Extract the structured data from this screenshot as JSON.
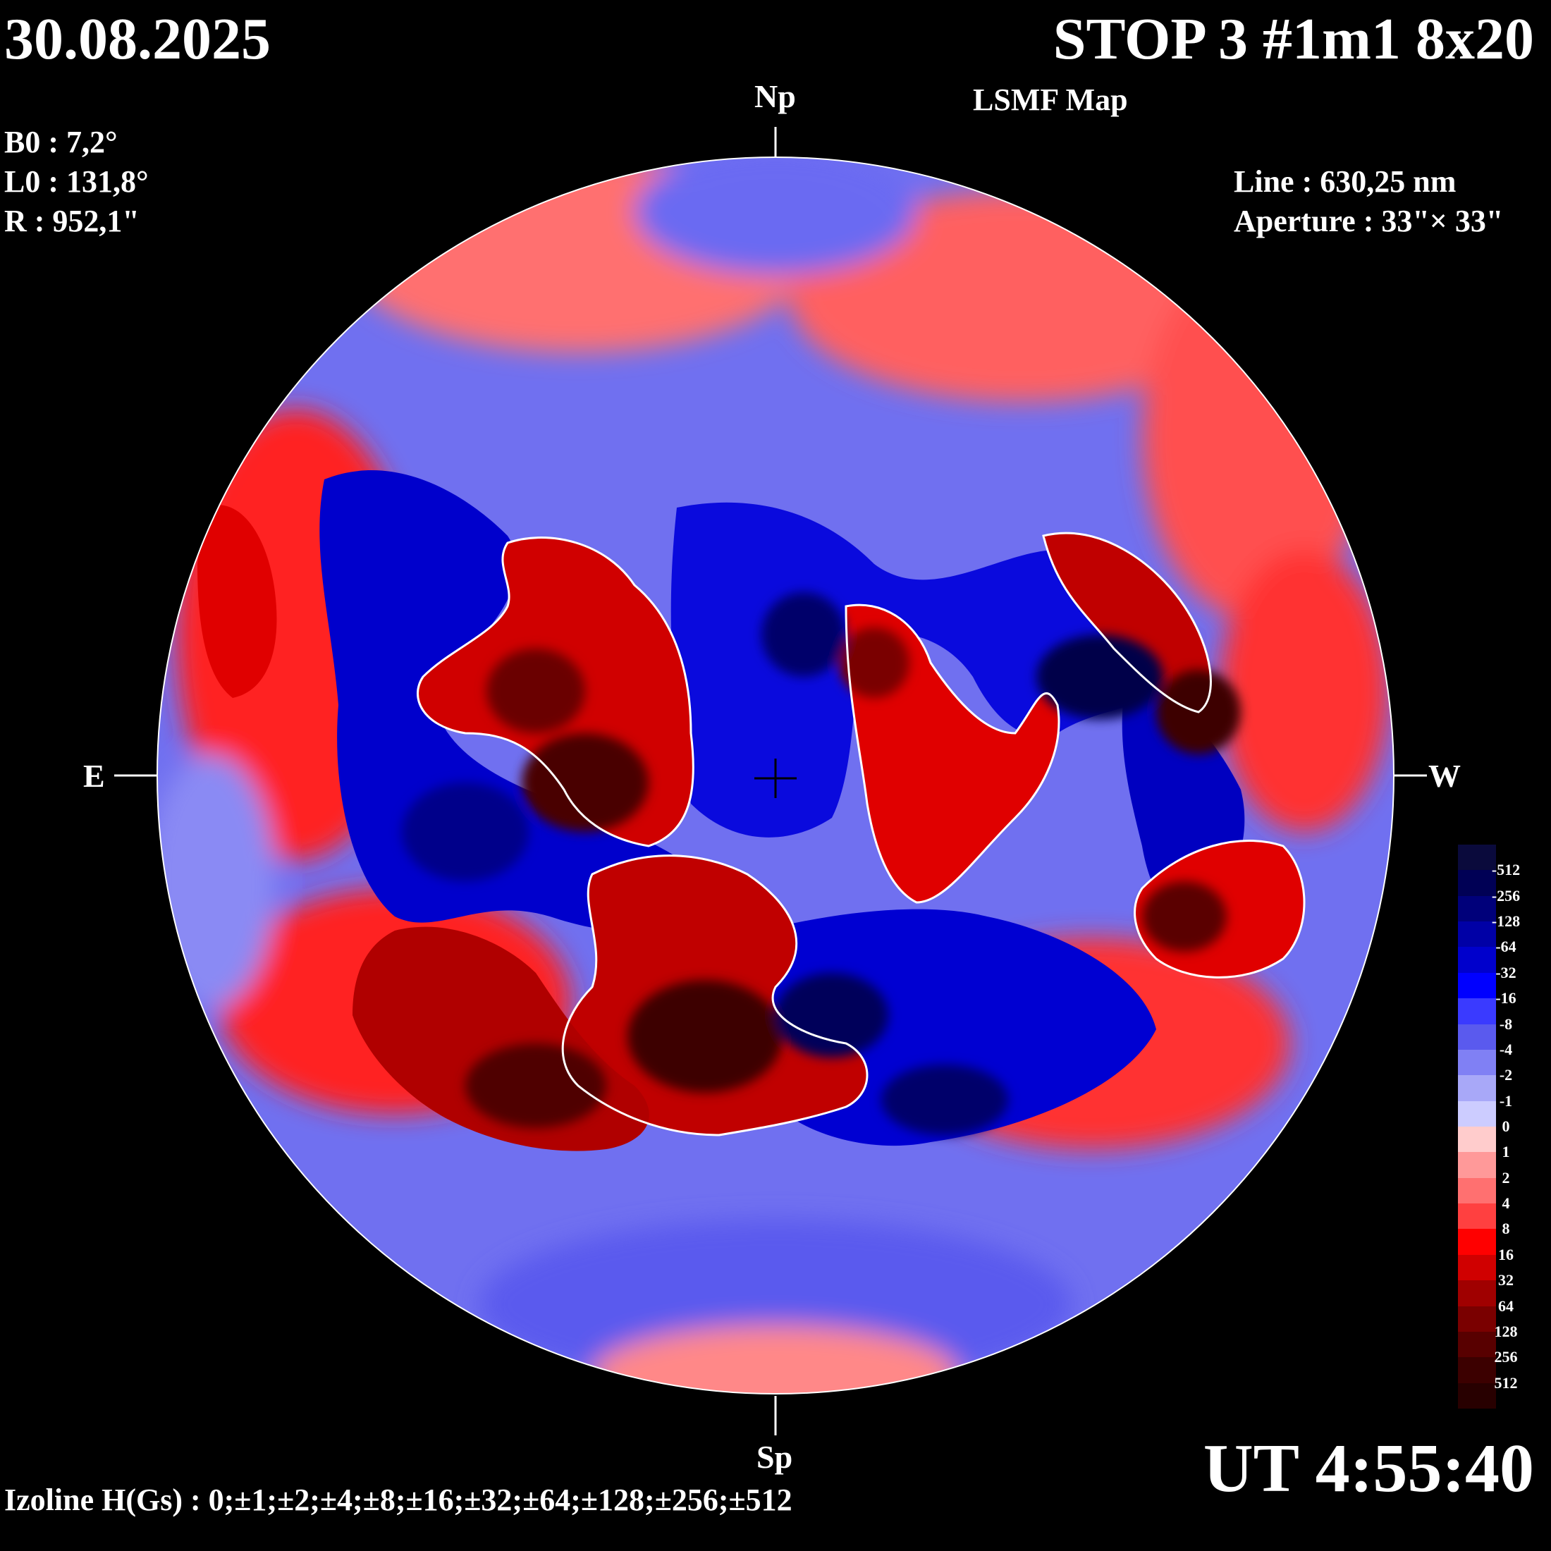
{
  "header": {
    "date": "30.08.2025",
    "title": "STOP 3 #1m1 8x20",
    "subtitle": "LSMF  Map"
  },
  "parameters": {
    "b0": "B0 : 7,2°",
    "l0": "L0 : 131,8°",
    "r": "R  : 952,1\""
  },
  "instrument": {
    "line": "Line :  630,25 nm",
    "aperture": "Aperture : 33\"× 33\""
  },
  "directions": {
    "north": "Np",
    "south": "Sp",
    "east": "E",
    "west": "W"
  },
  "time": "UT 4:55:40",
  "izoline": "Izoline H(Gs) : 0;±1;±2;±4;±8;±16;±32;±64;±128;±256;±512",
  "legend": {
    "labels": [
      "-512",
      "-256",
      "-128",
      "-64",
      "-32",
      "-16",
      "-8",
      "-4",
      "-2",
      "-1",
      "0",
      "1",
      "2",
      "4",
      "8",
      "16",
      "32",
      "64",
      "128",
      "256",
      "512"
    ],
    "colors": [
      "#0a0a3c",
      "#000055",
      "#00007a",
      "#0000a6",
      "#0000cc",
      "#0000ff",
      "#3a3aff",
      "#5a5aee",
      "#8080f4",
      "#a8a8f8",
      "#ccccff",
      "#ffcccc",
      "#ff9999",
      "#ff7070",
      "#ff4040",
      "#ff0000",
      "#d00000",
      "#a00000",
      "#7a0000",
      "#580000",
      "#3c0000",
      "#280000"
    ]
  },
  "colors": {
    "positive_strong": "#7a0000",
    "positive": "#ff1a1a",
    "positive_weak": "#ff9a9a",
    "negative_weak": "#a8a8f8",
    "negative": "#1010f0",
    "negative_strong": "#00006a",
    "izoline_zero": "#ffffff"
  }
}
